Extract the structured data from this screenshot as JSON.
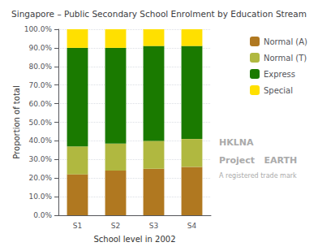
{
  "chart_data": {
    "type": "bar",
    "title": "Singapore – Public Secondary School Enrolment by Education Stream",
    "xlabel": "School level in 2002",
    "ylabel": "Proportion of total",
    "categories": [
      "S1",
      "S2",
      "S3",
      "S4"
    ],
    "series": [
      {
        "name": "Normal (A)",
        "color": "#b07820",
        "values": [
          22.0,
          24.0,
          25.0,
          26.0
        ]
      },
      {
        "name": "Normal (T)",
        "color": "#b0b840",
        "values": [
          15.0,
          14.5,
          15.0,
          15.0
        ]
      },
      {
        "name": "Express",
        "color": "#1a7a00",
        "values": [
          53.0,
          51.5,
          51.0,
          50.0
        ]
      },
      {
        "name": "Special",
        "color": "#ffe000",
        "values": [
          10.0,
          10.0,
          9.0,
          9.0
        ]
      }
    ],
    "stacked": true,
    "ylim": [
      0,
      100
    ],
    "yticks": [
      {
        "value": 0,
        "label": "0.0%"
      },
      {
        "value": 10,
        "label": "10.0%"
      },
      {
        "value": 20,
        "label": "20.0%"
      },
      {
        "value": 30,
        "label": "30.0%"
      },
      {
        "value": 40,
        "label": "40.0%"
      },
      {
        "value": 50,
        "label": "50.0%"
      },
      {
        "value": 60,
        "label": "60.0%"
      },
      {
        "value": 70,
        "label": "70.0%"
      },
      {
        "value": 80,
        "label": "80.0%"
      },
      {
        "value": 90,
        "label": "90.0%"
      },
      {
        "value": 100,
        "label": "100.0%"
      }
    ],
    "grid": true,
    "legend": "upper right",
    "annotations": [
      "HKLNA",
      "Project   EARTH",
      "A registered trade mark"
    ]
  }
}
